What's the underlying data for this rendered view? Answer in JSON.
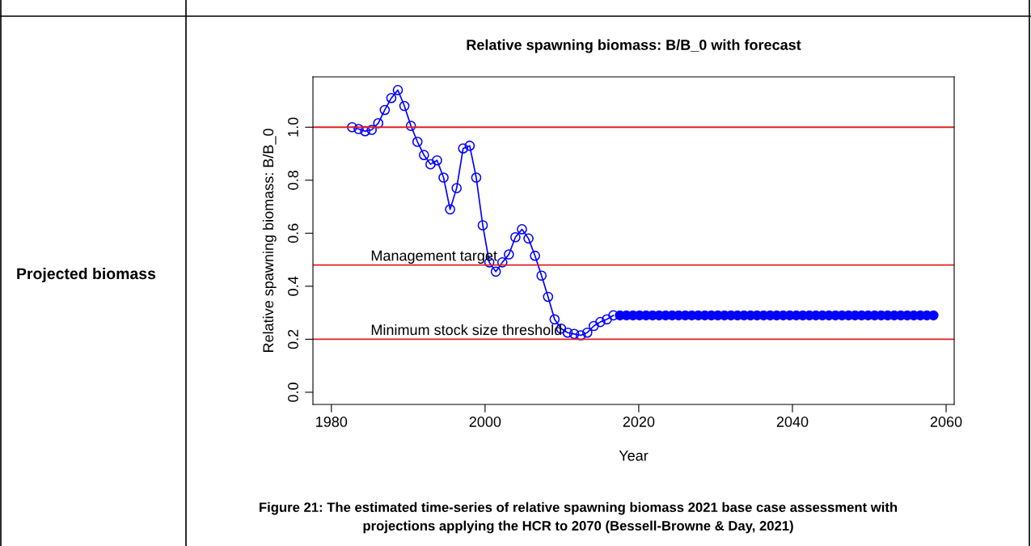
{
  "chart_data": {
    "type": "line",
    "title": "Relative spawning biomass: B/B_0 with forecast",
    "xlabel": "Year",
    "ylabel": "Relative spawning biomass: B/B_0",
    "annotations": [
      "Projected biomass",
      "Figure 21: The estimated time-series of relative spawning biomass 2021 base case assessment with\nprojections applying the HCR to 2070 (Bessell-Browne & Day, 2021)"
    ],
    "marker": "circle",
    "series": [
      {
        "color": "#0000ff",
        "x": [
          1982.7,
          1983.55,
          1984.4,
          1985.25,
          1986.1,
          1986.95,
          1987.8,
          1988.65,
          1989.5,
          1990.35,
          1991.2,
          1992.05,
          1992.9,
          1993.75,
          1994.6,
          1995.45,
          1996.3,
          1997.15,
          1998.0,
          1998.85,
          1999.7,
          2000.55,
          2001.4,
          2002.25,
          2003.1,
          2003.95,
          2004.8,
          2005.65,
          2006.5,
          2007.35,
          2008.2,
          2009.05,
          2009.9,
          2010.75,
          2011.6,
          2012.45,
          2013.3,
          2014.15,
          2015.0,
          2015.85,
          2016.7
        ],
        "values": [
          1.0,
          0.993,
          0.985,
          0.99,
          1.015,
          1.065,
          1.11,
          1.14,
          1.08,
          1.005,
          0.945,
          0.895,
          0.86,
          0.875,
          0.81,
          0.69,
          0.77,
          0.92,
          0.93,
          0.81,
          0.63,
          0.49,
          0.455,
          0.49,
          0.52,
          0.585,
          0.615,
          0.58,
          0.515,
          0.44,
          0.36,
          0.275,
          0.24,
          0.225,
          0.22,
          0.215,
          0.225,
          0.25,
          0.265,
          0.275,
          0.29
        ]
      },
      {
        "type": "scatter",
        "color": "#0000ff",
        "x": [
          2017.55,
          2018.4,
          2019.25,
          2020.1,
          2020.95,
          2021.8,
          2022.65,
          2023.5,
          2024.35,
          2025.2,
          2026.05,
          2026.9,
          2027.75,
          2028.6,
          2029.45,
          2030.3,
          2031.15,
          2032.0,
          2032.85,
          2033.7,
          2034.55,
          2035.4,
          2036.25,
          2037.1,
          2037.95,
          2038.8,
          2039.65,
          2040.5,
          2041.35,
          2042.2,
          2043.05,
          2043.9,
          2044.75,
          2045.6,
          2046.45,
          2047.3,
          2048.15,
          2049.0,
          2049.85,
          2050.7,
          2051.55,
          2052.4,
          2053.25,
          2054.1,
          2054.95,
          2055.8,
          2056.65,
          2057.5,
          2058.35
        ],
        "values": [
          0.29,
          0.29,
          0.29,
          0.29,
          0.29,
          0.29,
          0.29,
          0.29,
          0.29,
          0.29,
          0.29,
          0.29,
          0.29,
          0.29,
          0.29,
          0.29,
          0.29,
          0.29,
          0.29,
          0.29,
          0.29,
          0.29,
          0.29,
          0.29,
          0.29,
          0.29,
          0.29,
          0.29,
          0.29,
          0.29,
          0.29,
          0.29,
          0.29,
          0.29,
          0.29,
          0.29,
          0.29,
          0.29,
          0.29,
          0.29,
          0.29,
          0.29,
          0.29,
          0.29,
          0.29,
          0.29,
          0.29,
          0.29,
          0.29
        ]
      }
    ],
    "ref_lines": [
      {
        "axis": "y",
        "value": 1.0,
        "color": "#e02020"
      },
      {
        "axis": "y",
        "value": 0.48,
        "label": "Management target",
        "color": "#e02020"
      },
      {
        "axis": "y",
        "value": 0.2,
        "label": "Minimum stock size threshold",
        "color": "#e02020"
      }
    ],
    "xlim": [
      1977.6,
      2061.05
    ],
    "xticks": [
      1980,
      2000,
      2020,
      2040,
      2060
    ],
    "ylim": [
      -0.046,
      1.19
    ],
    "yticks": [
      {
        "value": 0,
        "label": "0.0"
      },
      0.2,
      0.4,
      0.6,
      0.8,
      {
        "value": 1,
        "label": "1.0"
      }
    ],
    "grid": false,
    "legend": false
  }
}
